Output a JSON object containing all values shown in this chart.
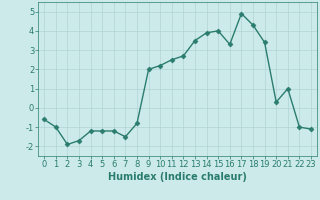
{
  "x": [
    0,
    1,
    2,
    3,
    4,
    5,
    6,
    7,
    8,
    9,
    10,
    11,
    12,
    13,
    14,
    15,
    16,
    17,
    18,
    19,
    20,
    21,
    22,
    23
  ],
  "y": [
    -0.6,
    -1.0,
    -1.9,
    -1.7,
    -1.2,
    -1.2,
    -1.2,
    -1.5,
    -0.8,
    2.0,
    2.2,
    2.5,
    2.7,
    3.5,
    3.9,
    4.0,
    3.3,
    4.9,
    4.3,
    3.4,
    0.3,
    1.0,
    -1.0,
    -1.1
  ],
  "line_color": "#2a7d6e",
  "marker": "D",
  "marker_size": 2.5,
  "linewidth": 1.0,
  "xlabel": "Humidex (Indice chaleur)",
  "xlim": [
    -0.5,
    23.5
  ],
  "ylim": [
    -2.5,
    5.5
  ],
  "yticks": [
    -2,
    -1,
    0,
    1,
    2,
    3,
    4,
    5
  ],
  "xticks": [
    0,
    1,
    2,
    3,
    4,
    5,
    6,
    7,
    8,
    9,
    10,
    11,
    12,
    13,
    14,
    15,
    16,
    17,
    18,
    19,
    20,
    21,
    22,
    23
  ],
  "bg_color": "#cdeaea",
  "grid_color": "#afd4d4",
  "tick_color": "#2a7d6e",
  "label_color": "#2a7d6e",
  "xlabel_fontsize": 7,
  "tick_fontsize": 6
}
